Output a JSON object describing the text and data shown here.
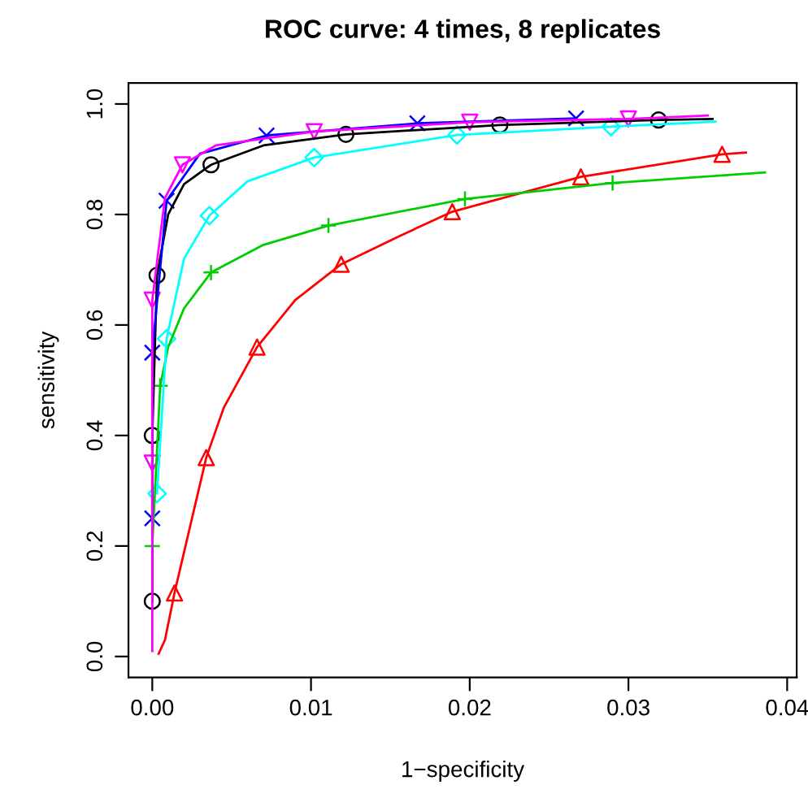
{
  "chart_data": {
    "type": "line",
    "title": "ROC curve: 4 times, 8 replicates",
    "xlabel": "1−specificity",
    "ylabel": "sensitivity",
    "xlim": [
      -0.0015,
      0.0406
    ],
    "ylim": [
      -0.038,
      1.038
    ],
    "xticks": [
      {
        "value": 0,
        "label": "0.00"
      },
      {
        "value": 0.01,
        "label": "0.01"
      },
      {
        "value": 0.02,
        "label": "0.02"
      },
      {
        "value": 0.03,
        "label": "0.03"
      },
      {
        "value": 0.04,
        "label": "0.04"
      }
    ],
    "yticks": [
      {
        "value": 0,
        "label": "0.0"
      },
      {
        "value": 0.2,
        "label": "0.2"
      },
      {
        "value": 0.4,
        "label": "0.4"
      },
      {
        "value": 0.6,
        "label": "0.6"
      },
      {
        "value": 0.8,
        "label": "0.8"
      },
      {
        "value": 1,
        "label": "1.0"
      }
    ],
    "grid": false,
    "legend": false,
    "series": [
      {
        "color": "#000000",
        "marker": "none",
        "x": [
          0,
          0,
          0.0003,
          0.001,
          0.002,
          0.0037,
          0.007,
          0.0122,
          0.0219,
          0.0319,
          0.0353
        ],
        "values": [
          0.1,
          0.4,
          0.69,
          0.8,
          0.855,
          0.89,
          0.925,
          0.945,
          0.962,
          0.971,
          0.973
        ]
      },
      {
        "type": "scatter",
        "color": "#000000",
        "marker": "circle",
        "x": [
          0,
          0,
          0.0003,
          0.0037,
          0.0122,
          0.0219,
          0.0319
        ],
        "values": [
          0.1,
          0.4,
          0.69,
          0.89,
          0.945,
          0.962,
          0.971
        ]
      },
      {
        "color": "#ff0000",
        "marker": "none",
        "x": [
          0.0004,
          0.0008,
          0.0014,
          0.0034,
          0.0045,
          0.0066,
          0.009,
          0.0119,
          0.0155,
          0.0189,
          0.027,
          0.0359,
          0.0374
        ],
        "values": [
          0.005,
          0.03,
          0.115,
          0.36,
          0.45,
          0.56,
          0.645,
          0.71,
          0.76,
          0.805,
          0.868,
          0.909,
          0.912
        ]
      },
      {
        "type": "scatter",
        "color": "#ff0000",
        "marker": "triangle",
        "x": [
          0.0014,
          0.0034,
          0.0066,
          0.0119,
          0.0189,
          0.027,
          0.0359
        ],
        "values": [
          0.115,
          0.36,
          0.56,
          0.71,
          0.805,
          0.868,
          0.909
        ]
      },
      {
        "color": "#00cd00",
        "marker": "none",
        "x": [
          0,
          0.0005,
          0.001,
          0.002,
          0.0037,
          0.007,
          0.0111,
          0.0197,
          0.029,
          0.0386
        ],
        "values": [
          0.2,
          0.49,
          0.56,
          0.63,
          0.695,
          0.745,
          0.78,
          0.828,
          0.857,
          0.876
        ]
      },
      {
        "type": "scatter",
        "color": "#00cd00",
        "marker": "plus",
        "x": [
          0,
          0.0005,
          0.0037,
          0.0111,
          0.0197,
          0.029
        ],
        "values": [
          0.2,
          0.49,
          0.695,
          0.78,
          0.828,
          0.857
        ]
      },
      {
        "color": "#00ffff",
        "marker": "none",
        "x": [
          0.0003,
          0.0009,
          0.002,
          0.0036,
          0.006,
          0.0102,
          0.0192,
          0.0289,
          0.0355
        ],
        "values": [
          0.295,
          0.575,
          0.72,
          0.798,
          0.86,
          0.903,
          0.944,
          0.959,
          0.968
        ]
      },
      {
        "type": "scatter",
        "color": "#00ffff",
        "marker": "diamond",
        "x": [
          0.0003,
          0.0009,
          0.0036,
          0.0102,
          0.0192,
          0.0289
        ],
        "values": [
          0.295,
          0.575,
          0.798,
          0.903,
          0.944,
          0.959
        ]
      },
      {
        "color": "#0000ff",
        "marker": "none",
        "x": [
          0,
          0,
          0.0009,
          0.003,
          0.0072,
          0.0167,
          0.0267
        ],
        "values": [
          0.25,
          0.55,
          0.825,
          0.91,
          0.943,
          0.965,
          0.974
        ]
      },
      {
        "type": "scatter",
        "color": "#0000ff",
        "marker": "cross",
        "x": [
          0,
          0,
          0.0009,
          0.0072,
          0.0167,
          0.0267
        ],
        "values": [
          0.25,
          0.55,
          0.825,
          0.943,
          0.965,
          0.974
        ]
      },
      {
        "color": "#ff00ff",
        "marker": "none",
        "x": [
          0,
          0,
          0,
          0.0008,
          0.0019,
          0.004,
          0.0102,
          0.02,
          0.03,
          0.035
        ],
        "values": [
          0.01,
          0.35,
          0.645,
          0.83,
          0.89,
          0.925,
          0.95,
          0.967,
          0.973,
          0.979
        ]
      },
      {
        "type": "scatter",
        "color": "#ff00ff",
        "marker": "triangle_down",
        "x": [
          0,
          0,
          0.0019,
          0.0102,
          0.02,
          0.03
        ],
        "values": [
          0.35,
          0.645,
          0.89,
          0.95,
          0.967,
          0.973
        ]
      }
    ]
  }
}
